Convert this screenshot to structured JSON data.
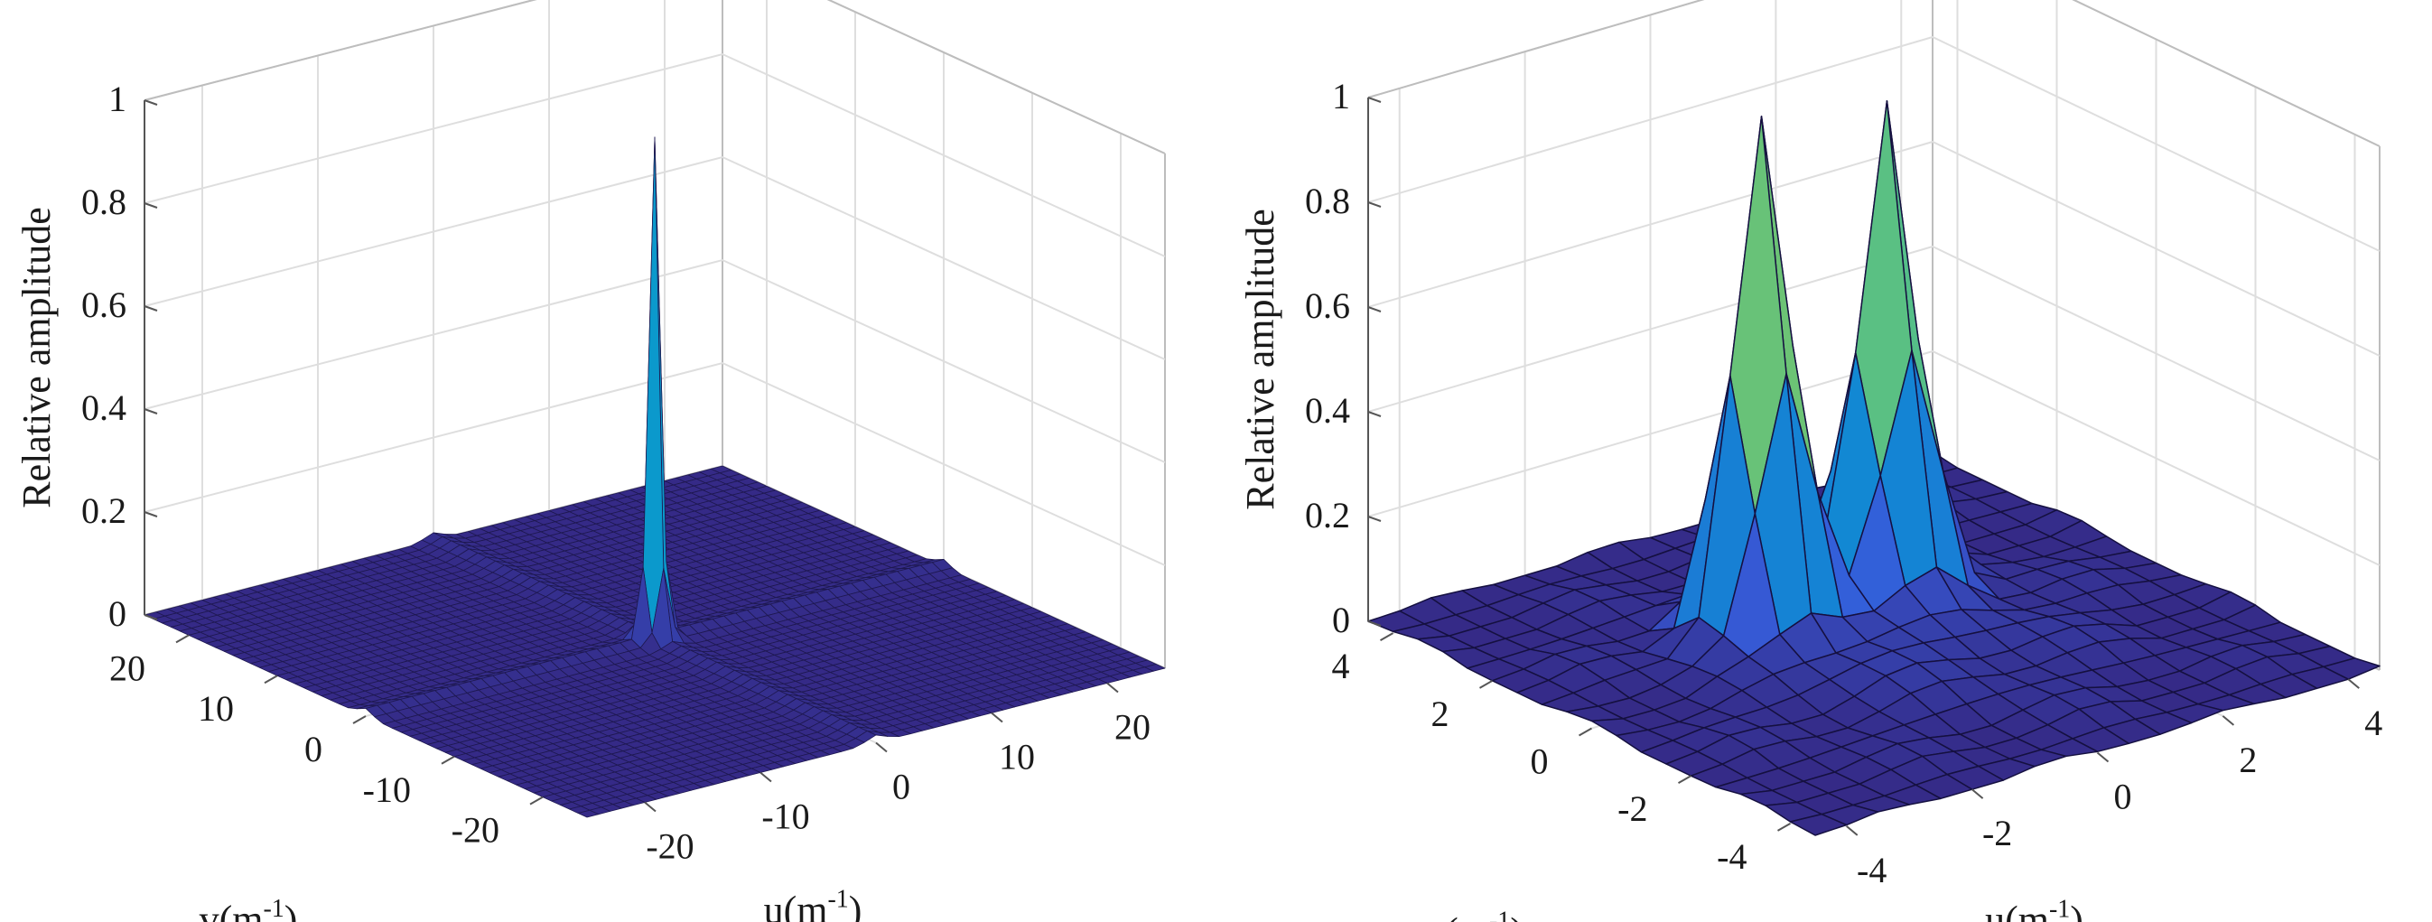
{
  "chart_data": [
    {
      "type": "surface",
      "title": "",
      "xlabel": "u(m",
      "ylabel": "v(m",
      "label_exponent": "-1",
      "label_close": ")",
      "zlabel": "Relative amplitude",
      "xlim": [
        -25,
        25
      ],
      "ylim": [
        -25,
        25
      ],
      "zlim": [
        0,
        1
      ],
      "x_ticks": [
        "-20",
        "-10",
        "0",
        "10",
        "20"
      ],
      "y_ticks": [
        "-20",
        "-10",
        "0",
        "10",
        "20"
      ],
      "z_ticks": [
        "0",
        "0.2",
        "0.4",
        "0.6",
        "0.8",
        "1"
      ],
      "grid": true,
      "colormap": "parula",
      "peak": {
        "u": 0,
        "v": 0,
        "amplitude": 0.95
      },
      "description_values": {
        "background_amplitude": 0.0,
        "cross_ridges_along_axes": true
      }
    },
    {
      "type": "surface",
      "title": "",
      "xlabel": "u(m",
      "ylabel": "v(m",
      "label_exponent": "-1",
      "label_close": ")",
      "zlabel": "Relative amplitude",
      "xlim": [
        -4,
        4
      ],
      "ylim": [
        -4,
        4
      ],
      "zlim": [
        0,
        1
      ],
      "x_ticks": [
        "-4",
        "-2",
        "0",
        "2",
        "4"
      ],
      "y_ticks": [
        "-4",
        "-2",
        "0",
        "2",
        "4"
      ],
      "z_ticks": [
        "0",
        "0.2",
        "0.4",
        "0.6",
        "0.8",
        "1"
      ],
      "grid": true,
      "colormap": "parula",
      "peaks": [
        {
          "u": -1.0,
          "v": 1.0,
          "amplitude": 1.0
        },
        {
          "u": 1.0,
          "v": 1.0,
          "amplitude": 0.92
        }
      ]
    }
  ]
}
